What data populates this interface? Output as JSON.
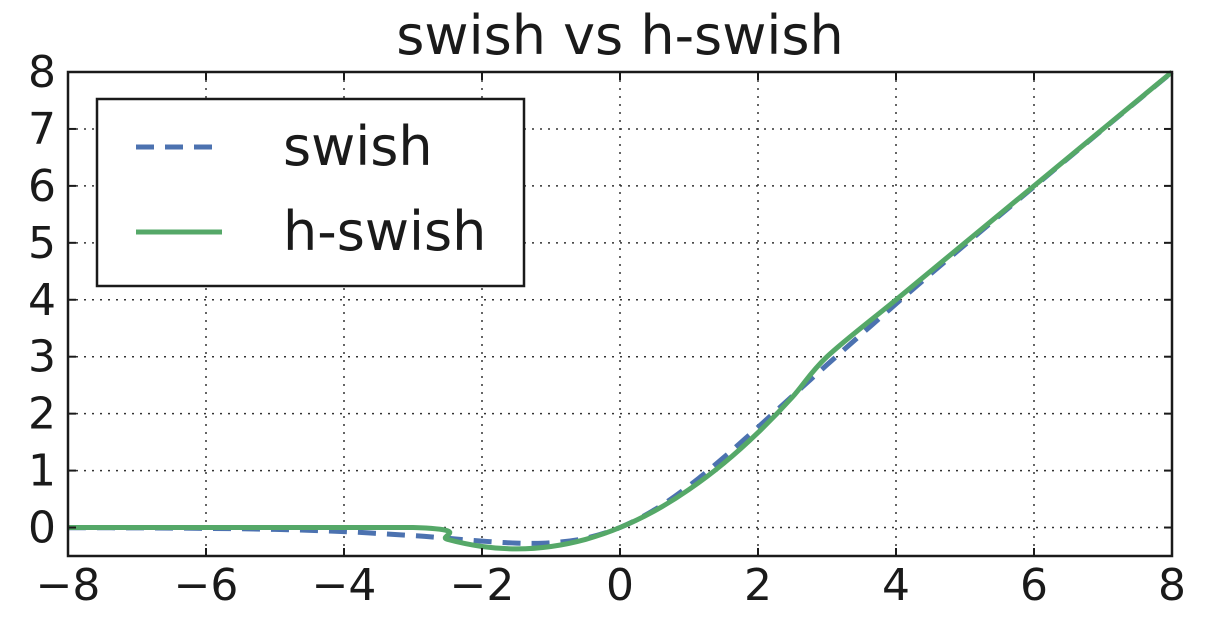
{
  "chart_data": {
    "type": "line",
    "title": "swish vs h-swish",
    "xlabel": "",
    "ylabel": "",
    "xlim": [
      -8,
      8
    ],
    "ylim": [
      -0.5,
      8
    ],
    "xticks": [
      -8,
      -6,
      -4,
      -2,
      0,
      2,
      4,
      6,
      8
    ],
    "xtick_labels": [
      "−8",
      "−6",
      "−4",
      "−2",
      "0",
      "2",
      "4",
      "6",
      "8"
    ],
    "yticks": [
      0,
      1,
      2,
      3,
      4,
      5,
      6,
      7,
      8
    ],
    "ytick_labels": [
      "0",
      "1",
      "2",
      "3",
      "4",
      "5",
      "6",
      "7",
      "8"
    ],
    "grid": true,
    "legend_position": "top-left",
    "series": [
      {
        "name": "swish",
        "style": "dashed",
        "color": "#4c72b0",
        "x": [
          -8,
          -7,
          -6,
          -5,
          -4,
          -3,
          -2.5,
          -2,
          -1.5,
          -1,
          -0.5,
          0,
          0.5,
          1,
          1.5,
          2,
          2.5,
          3,
          4,
          5,
          6,
          7,
          8
        ],
        "y": [
          -0.003,
          -0.006,
          -0.015,
          -0.033,
          -0.072,
          -0.142,
          -0.189,
          -0.238,
          -0.274,
          -0.269,
          -0.189,
          0,
          0.311,
          0.731,
          1.226,
          1.762,
          2.31,
          2.858,
          3.928,
          4.967,
          5.985,
          6.994,
          7.997
        ]
      },
      {
        "name": "h-swish",
        "style": "solid",
        "color": "#55a868",
        "x": [
          -8,
          -3,
          -2.5,
          -2,
          -1.5,
          -1,
          -0.5,
          0,
          0.5,
          1,
          1.5,
          2,
          2.5,
          3,
          4,
          5,
          6,
          7,
          8
        ],
        "y": [
          0,
          0,
          -0.208,
          -0.333,
          -0.375,
          -0.333,
          -0.208,
          0,
          0.292,
          0.667,
          1.125,
          1.667,
          2.292,
          3,
          4,
          5,
          6,
          7,
          8
        ]
      }
    ]
  }
}
